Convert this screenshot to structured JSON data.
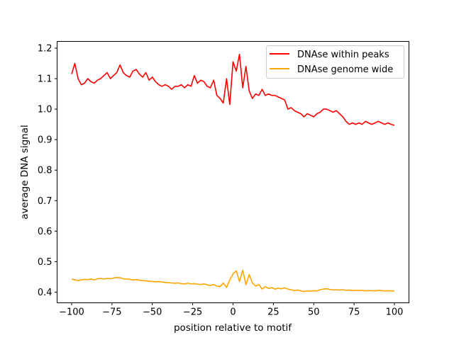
{
  "chart_data": {
    "type": "line",
    "title": "",
    "xlabel": "position relative to motif",
    "ylabel": "average DNA signal",
    "xlim": [
      -109,
      109
    ],
    "ylim": [
      0.365,
      1.222
    ],
    "xticks": [
      -100,
      -75,
      -50,
      -25,
      0,
      25,
      50,
      75,
      100
    ],
    "xtick_labels": [
      "−100",
      "−75",
      "−50",
      "−25",
      "0",
      "25",
      "50",
      "75",
      "100"
    ],
    "yticks": [
      0.4,
      0.5,
      0.6,
      0.7,
      0.8,
      0.9,
      1.0,
      1.1,
      1.2
    ],
    "ytick_labels": [
      "0.4",
      "0.5",
      "0.6",
      "0.7",
      "0.8",
      "0.9",
      "1.0",
      "1.1",
      "1.2"
    ],
    "grid": false,
    "legend_placement": "top-right",
    "x_start": -100,
    "x_step": 2,
    "series": [
      {
        "name": "DNAse within peaks",
        "color": "#ff0000",
        "values": [
          1.115,
          1.15,
          1.1,
          1.08,
          1.085,
          1.1,
          1.09,
          1.085,
          1.095,
          1.1,
          1.11,
          1.12,
          1.1,
          1.11,
          1.12,
          1.145,
          1.12,
          1.11,
          1.105,
          1.125,
          1.13,
          1.115,
          1.105,
          1.12,
          1.095,
          1.105,
          1.09,
          1.08,
          1.075,
          1.08,
          1.075,
          1.065,
          1.075,
          1.075,
          1.08,
          1.07,
          1.08,
          1.075,
          1.11,
          1.085,
          1.095,
          1.09,
          1.075,
          1.07,
          1.095,
          1.045,
          1.035,
          1.02,
          1.1,
          1.015,
          1.155,
          1.125,
          1.18,
          1.07,
          1.14,
          1.06,
          1.035,
          1.05,
          1.045,
          1.065,
          1.045,
          1.05,
          1.045,
          1.045,
          1.04,
          1.035,
          1.03,
          1.0,
          1.005,
          0.995,
          0.99,
          0.985,
          0.975,
          0.985,
          0.98,
          0.975,
          0.985,
          0.99,
          1.0,
          1.0,
          0.995,
          0.99,
          0.995,
          0.985,
          0.975,
          0.96,
          0.95,
          0.955,
          0.95,
          0.955,
          0.95,
          0.96,
          0.955,
          0.95,
          0.955,
          0.96,
          0.955,
          0.95,
          0.955,
          0.95,
          0.947
        ]
      },
      {
        "name": "DNAse genome wide",
        "color": "#ffa500",
        "values": [
          0.443,
          0.44,
          0.438,
          0.44,
          0.442,
          0.441,
          0.443,
          0.44,
          0.444,
          0.445,
          0.443,
          0.445,
          0.444,
          0.446,
          0.448,
          0.447,
          0.444,
          0.443,
          0.442,
          0.44,
          0.441,
          0.439,
          0.438,
          0.437,
          0.436,
          0.435,
          0.434,
          0.435,
          0.433,
          0.432,
          0.431,
          0.43,
          0.429,
          0.43,
          0.428,
          0.427,
          0.429,
          0.427,
          0.428,
          0.426,
          0.425,
          0.427,
          0.424,
          0.422,
          0.425,
          0.42,
          0.418,
          0.43,
          0.415,
          0.44,
          0.46,
          0.47,
          0.435,
          0.472,
          0.425,
          0.458,
          0.43,
          0.42,
          0.425,
          0.41,
          0.418,
          0.412,
          0.415,
          0.41,
          0.413,
          0.411,
          0.414,
          0.41,
          0.408,
          0.405,
          0.407,
          0.404,
          0.402,
          0.404,
          0.403,
          0.405,
          0.404,
          0.408,
          0.41,
          0.411,
          0.409,
          0.407,
          0.408,
          0.407,
          0.408,
          0.406,
          0.407,
          0.405,
          0.406,
          0.405,
          0.406,
          0.404,
          0.405,
          0.405,
          0.404,
          0.406,
          0.405,
          0.404,
          0.405,
          0.404,
          0.404
        ]
      }
    ]
  }
}
